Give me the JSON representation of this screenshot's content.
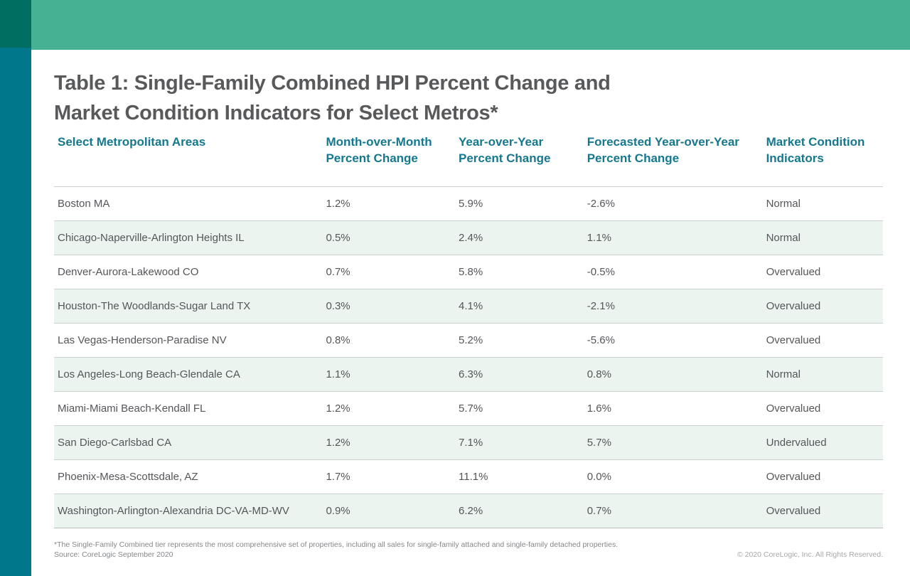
{
  "brand": {
    "topbar_color": "#47B193",
    "corner_square_color": "#006E60",
    "sidebar_color": "#00778A",
    "header_text_color": "#15788F",
    "alt_row_color": "#ECF4F0"
  },
  "title": {
    "line1": "Table 1: Single-Family Combined HPI Percent Change and",
    "line2": "Market Condition Indicators for Select Metros*"
  },
  "table": {
    "columns": [
      {
        "line1": "Select Metropolitan Areas",
        "line2": ""
      },
      {
        "line1": "Month-over-Month",
        "line2": "Percent Change"
      },
      {
        "line1": "Year-over-Year",
        "line2": "Percent Change"
      },
      {
        "line1": "Forecasted Year-over-Year",
        "line2": "Percent Change"
      },
      {
        "line1": "Market Condition",
        "line2": "Indicators"
      }
    ],
    "rows": [
      {
        "metro": "Boston MA",
        "mom": "1.2%",
        "yoy": "5.9%",
        "forecast_yoy": "-2.6%",
        "condition": "Normal"
      },
      {
        "metro": "Chicago-Naperville-Arlington Heights IL",
        "mom": "0.5%",
        "yoy": "2.4%",
        "forecast_yoy": "1.1%",
        "condition": "Normal"
      },
      {
        "metro": "Denver-Aurora-Lakewood CO",
        "mom": "0.7%",
        "yoy": "5.8%",
        "forecast_yoy": "-0.5%",
        "condition": "Overvalued"
      },
      {
        "metro": "Houston-The Woodlands-Sugar Land TX",
        "mom": "0.3%",
        "yoy": "4.1%",
        "forecast_yoy": "-2.1%",
        "condition": "Overvalued"
      },
      {
        "metro": "Las Vegas-Henderson-Paradise NV",
        "mom": "0.8%",
        "yoy": "5.2%",
        "forecast_yoy": "-5.6%",
        "condition": "Overvalued"
      },
      {
        "metro": "Los Angeles-Long Beach-Glendale CA",
        "mom": "1.1%",
        "yoy": "6.3%",
        "forecast_yoy": "0.8%",
        "condition": "Normal"
      },
      {
        "metro": "Miami-Miami Beach-Kendall FL",
        "mom": "1.2%",
        "yoy": "5.7%",
        "forecast_yoy": "1.6%",
        "condition": "Overvalued"
      },
      {
        "metro": "San Diego-Carlsbad CA",
        "mom": "1.2%",
        "yoy": "7.1%",
        "forecast_yoy": "5.7%",
        "condition": "Undervalued"
      },
      {
        "metro": "Phoenix-Mesa-Scottsdale, AZ",
        "mom": "1.7%",
        "yoy": "11.1%",
        "forecast_yoy": "0.0%",
        "condition": "Overvalued"
      },
      {
        "metro": "Washington-Arlington-Alexandria DC-VA-MD-WV",
        "mom": "0.9%",
        "yoy": "6.2%",
        "forecast_yoy": "0.7%",
        "condition": "Overvalued"
      }
    ]
  },
  "footer": {
    "footnote": "*The Single-Family Combined tier represents the most comprehensive set of properties, including all sales for single-family attached and single-family detached properties.",
    "source": "Source: CoreLogic September 2020",
    "copyright": "© 2020 CoreLogic, Inc. All Rights Reserved."
  }
}
